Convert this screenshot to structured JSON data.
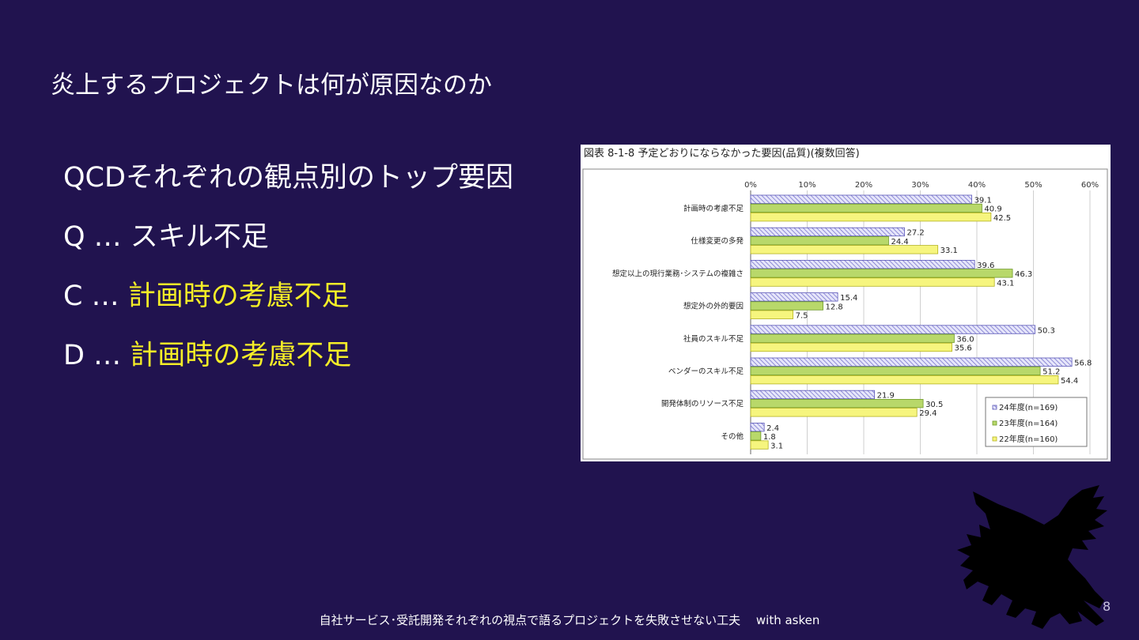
{
  "slide": {
    "title": "炎上するプロジェクトは何が原因なのか",
    "bullets": [
      {
        "prefix": "QCDそれぞれの観点別のトップ要因",
        "highlight": ""
      },
      {
        "prefix": "Q … スキル不足",
        "highlight": ""
      },
      {
        "prefix": "C … ",
        "highlight": "計画時の考慮不足"
      },
      {
        "prefix": "D … ",
        "highlight": "計画時の考慮不足"
      }
    ],
    "highlight_color": "#f5ee27",
    "footer": "自社サービス･受託開発それぞれの視点で語るプロジェクトを失敗させない工夫　 with asken",
    "page_number": "8",
    "logo_icon": "dragon-silhouette-icon"
  },
  "chart_data": {
    "type": "bar",
    "orientation": "horizontal",
    "title": "図表 8-1-8  予定どおりにならなかった要因(品質)(複数回答)",
    "categories": [
      "計画時の考慮不足",
      "仕様変更の多発",
      "想定以上の現行業務･システムの複雑さ",
      "想定外の外的要因",
      "社員のスキル不足",
      "ベンダーのスキル不足",
      "開発体制のリソース不足",
      "その他"
    ],
    "series": [
      {
        "name": "24年度(n=169)",
        "values": [
          39.1,
          27.2,
          39.6,
          15.4,
          50.3,
          56.8,
          21.9,
          2.4
        ],
        "color": "#c9c8f0",
        "hatch": true
      },
      {
        "name": "23年度(n=164)",
        "values": [
          40.9,
          24.4,
          46.3,
          12.8,
          36.0,
          51.2,
          30.5,
          1.8
        ],
        "color": "#b8d86a",
        "hatch": false
      },
      {
        "name": "22年度(n=160)",
        "values": [
          42.5,
          33.1,
          43.1,
          7.5,
          35.6,
          54.4,
          29.4,
          3.1
        ],
        "color": "#f6f57e",
        "hatch": false
      }
    ],
    "value_labels": [
      [
        "39.1",
        "27.2",
        "39.6",
        "15.4",
        "50.3",
        "56.8",
        "21.9",
        "2.4"
      ],
      [
        "40.9",
        "24.4",
        "46.3",
        "12.8",
        "36.0",
        "51.2",
        "30.5",
        "1.8"
      ],
      [
        "42.5",
        "33.1",
        "43.1",
        "7.5",
        "35.6",
        "54.4",
        "29.4",
        "3.1"
      ]
    ],
    "xlim": [
      0,
      60
    ],
    "xticks": [
      "0%",
      "10%",
      "20%",
      "30%",
      "40%",
      "50%",
      "60%"
    ],
    "grid": true,
    "legend_position": "bottom-right"
  }
}
